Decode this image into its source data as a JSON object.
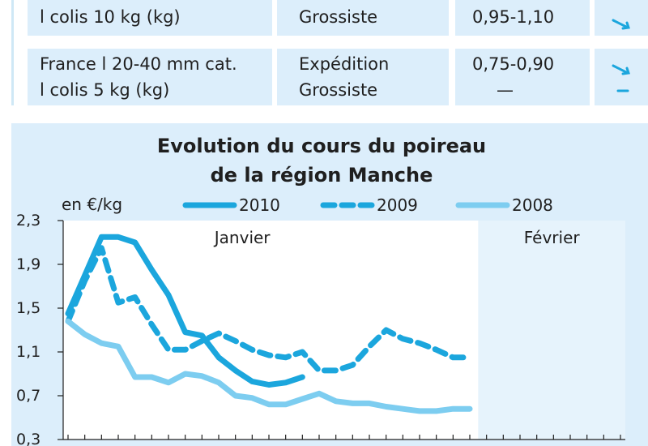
{
  "table": {
    "rows": [
      {
        "product": [
          "l colis 10 kg (kg)"
        ],
        "stage": [
          "Grossiste"
        ],
        "price": [
          "0,95-1,10"
        ],
        "trend": [
          "down"
        ]
      },
      {
        "product": [
          "France l 20-40 mm cat.",
          "l colis 5 kg (kg)"
        ],
        "stage": [
          "Expédition",
          "Grossiste"
        ],
        "price": [
          "0,75-0,90",
          "—"
        ],
        "trend": [
          "down",
          "stable"
        ]
      }
    ]
  },
  "colors": {
    "s2010": "#1ba6dd",
    "s2009": "#1ba6dd",
    "s2008": "#7dcdf0",
    "panel": "#dceefb",
    "plot": "#ffffff",
    "february_band": "#e6f3fc"
  },
  "chart_data": {
    "type": "line",
    "title": [
      "Evolution du cours du poireau",
      "de la région Manche"
    ],
    "ylabel": "en €/kg",
    "yticks": [
      "2,3",
      "1,9",
      "1,5",
      "1,1",
      "0,7",
      "0,3"
    ],
    "ylim": [
      0.3,
      2.3
    ],
    "month_labels": [
      "Janvier",
      "Février"
    ],
    "legend_position": "top",
    "grid": false,
    "x": [
      1,
      2,
      3,
      4,
      5,
      6,
      7,
      8,
      9,
      10,
      11,
      12,
      13,
      14,
      15,
      16,
      17,
      18,
      19,
      20,
      21,
      22,
      23,
      24,
      25,
      26,
      27,
      28,
      29,
      30,
      31,
      32,
      33,
      34
    ],
    "series": [
      {
        "name": "2010",
        "style": "solid",
        "values": [
          1.45,
          1.8,
          2.15,
          2.15,
          2.1,
          1.85,
          1.62,
          1.28,
          1.25,
          1.05,
          0.93,
          0.83,
          0.8,
          0.82,
          0.87,
          null,
          null,
          null,
          null,
          null,
          null,
          null,
          null,
          null,
          null,
          null,
          null,
          null,
          null,
          null,
          null,
          null,
          null,
          null
        ]
      },
      {
        "name": "2009",
        "style": "dashed",
        "values": [
          1.38,
          1.75,
          2.05,
          1.55,
          1.6,
          1.35,
          1.12,
          1.12,
          1.2,
          1.27,
          1.2,
          1.12,
          1.07,
          1.05,
          1.1,
          0.93,
          0.93,
          0.98,
          1.15,
          1.3,
          1.22,
          1.18,
          1.12,
          1.05,
          1.05,
          null,
          null,
          null,
          null,
          null,
          null,
          null,
          null,
          null
        ]
      },
      {
        "name": "2008",
        "style": "solid",
        "values": [
          1.38,
          1.26,
          1.18,
          1.15,
          0.87,
          0.87,
          0.82,
          0.9,
          0.88,
          0.82,
          0.7,
          0.68,
          0.62,
          0.62,
          0.67,
          0.72,
          0.65,
          0.63,
          0.63,
          0.6,
          0.58,
          0.56,
          0.56,
          0.58,
          0.58,
          null,
          null,
          null,
          null,
          null,
          null,
          null,
          null,
          null
        ]
      }
    ]
  }
}
